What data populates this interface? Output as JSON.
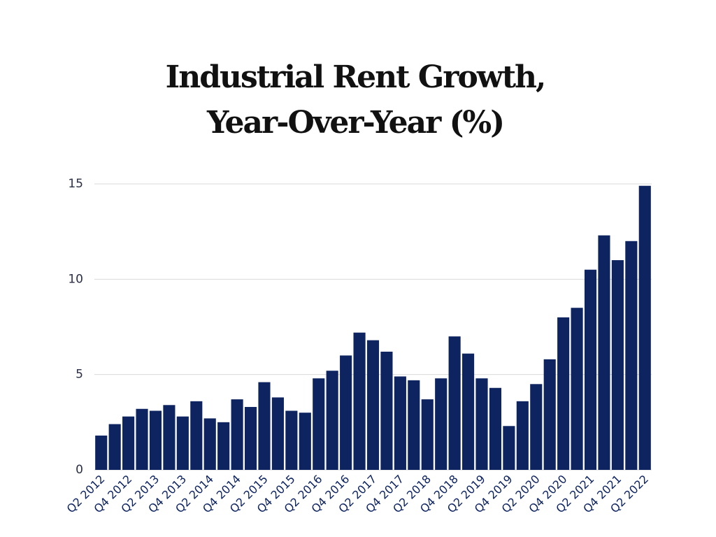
{
  "chart_data": {
    "type": "bar",
    "title": [
      "Industrial Rent Growth,",
      "Year-Over-Year (%)"
    ],
    "categories": [
      "Q2 2012",
      null,
      "Q4 2012",
      null,
      "Q2 2013",
      null,
      "Q4 2013",
      null,
      "Q2 2014",
      null,
      "Q4 2014",
      null,
      "Q2 2015",
      null,
      "Q4 2015",
      null,
      "Q2 2016",
      null,
      "Q4 2016",
      null,
      "Q2 2017",
      null,
      "Q4 2017",
      null,
      "Q2 2018",
      null,
      "Q4 2018",
      null,
      "Q2 2019",
      null,
      "Q4 2019",
      null,
      "Q2 2020",
      null,
      "Q4 2020",
      null,
      "Q2 2021",
      null,
      "Q4 2021",
      null,
      "Q2 2022"
    ],
    "values": [
      1.8,
      2.4,
      2.8,
      3.2,
      3.1,
      3.4,
      2.8,
      3.6,
      2.7,
      2.5,
      3.7,
      3.3,
      4.6,
      3.8,
      3.1,
      3.0,
      4.8,
      5.2,
      6.0,
      7.2,
      6.8,
      6.2,
      4.9,
      4.7,
      3.7,
      4.8,
      7.0,
      6.1,
      4.8,
      4.3,
      2.3,
      3.6,
      4.5,
      5.8,
      8.0,
      8.5,
      10.5,
      12.3,
      11.0,
      12.0,
      14.9
    ],
    "color": "#0d2461",
    "ylim": [
      0,
      15
    ],
    "yticks": [
      0,
      5,
      10,
      15
    ],
    "grid": true
  }
}
